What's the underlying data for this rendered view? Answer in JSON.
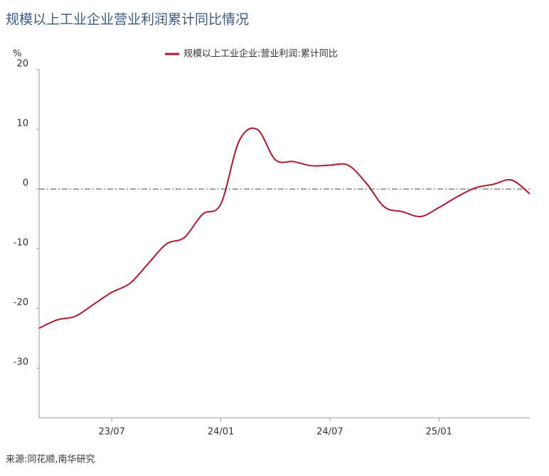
{
  "chart_data": {
    "type": "line",
    "title": "规模以上工业企业营业利润累计同比情况",
    "y_unit": "%",
    "source": "来源:同花顺,南华研究",
    "x": [
      "23/03",
      "23/04",
      "23/05",
      "23/06",
      "23/07",
      "23/08",
      "23/09",
      "23/10",
      "23/11",
      "23/12",
      "24/01",
      "24/02",
      "24/03",
      "24/04",
      "24/05",
      "24/06",
      "24/07",
      "24/08",
      "24/09",
      "24/10",
      "24/11",
      "24/12",
      "25/01",
      "25/02",
      "25/03",
      "25/04",
      "25/05",
      "25/06"
    ],
    "series": [
      {
        "name": "规模以上工业企业:营业利润:累计同比",
        "color": "#b5152b",
        "values": [
          -23.3,
          -21.9,
          -21.3,
          -19.3,
          -17.3,
          -15.8,
          -12.5,
          -9.2,
          -8.1,
          -4.2,
          -2.5,
          8.0,
          10.0,
          4.9,
          4.6,
          3.9,
          4.0,
          4.0,
          1.0,
          -3.0,
          -3.8,
          -4.6,
          -3.1,
          -1.3,
          0.2,
          0.8,
          1.5,
          -0.8
        ]
      }
    ],
    "ylim": [
      -38.3,
      20
    ],
    "yticks": [
      20,
      10,
      0,
      -10,
      -20,
      -30
    ],
    "xticks": [
      "23/07",
      "24/01",
      "24/07",
      "25/01"
    ],
    "reference_line": 0
  }
}
